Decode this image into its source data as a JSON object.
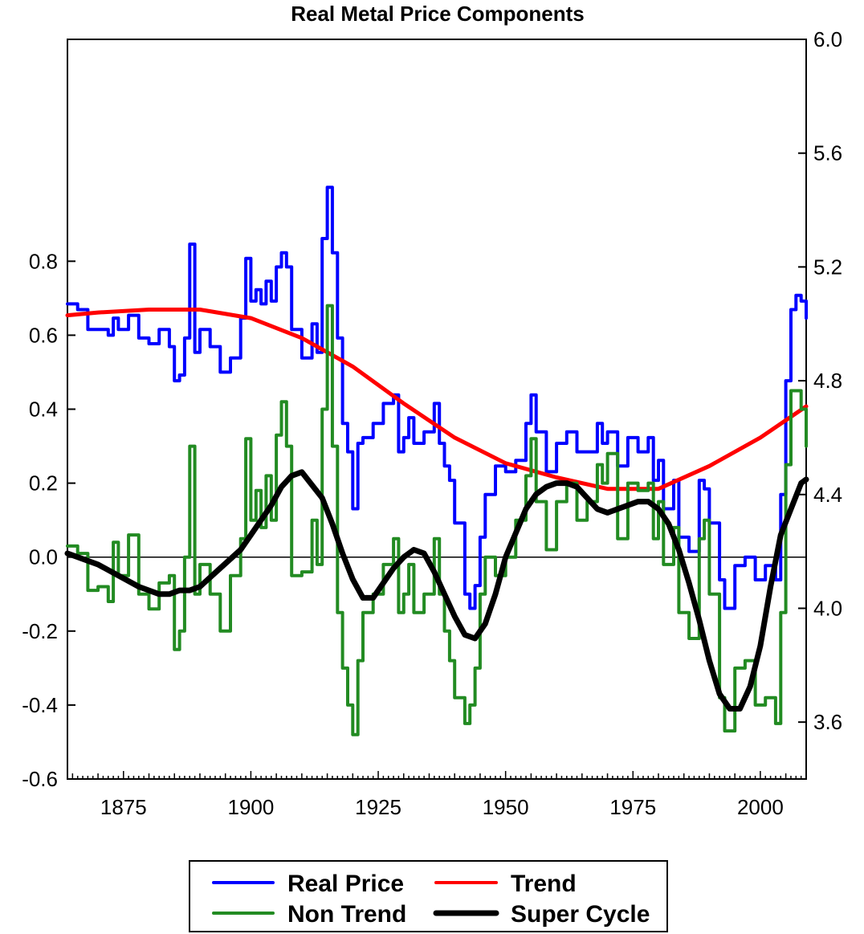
{
  "chart_data": {
    "type": "line",
    "title": "Real Metal Price Components",
    "legend_position": "bottom-center",
    "grid": false,
    "x_axis": {
      "range": [
        1864,
        2009
      ],
      "ticks": [
        1875,
        1900,
        1925,
        1950,
        1975,
        2000
      ]
    },
    "y_left": {
      "range": [
        -0.6,
        1.4
      ],
      "ticks": [
        "-0.6",
        "-0.4",
        "-0.2",
        "0.0",
        "0.2",
        "0.4",
        "0.6",
        "0.8"
      ],
      "reference_line": 0.0
    },
    "y_right": {
      "range": [
        3.4,
        6.0
      ],
      "ticks": [
        "3.6",
        "4.0",
        "4.4",
        "4.8",
        "5.2",
        "5.6",
        "6.0"
      ]
    },
    "series": [
      {
        "name": "Real Price",
        "axis": "right",
        "color": "#0000ff",
        "width": 4,
        "x": [
          1864,
          1866,
          1868,
          1870,
          1872,
          1873,
          1874,
          1876,
          1878,
          1880,
          1882,
          1884,
          1885,
          1886,
          1887,
          1888,
          1889,
          1890,
          1892,
          1894,
          1896,
          1898,
          1899,
          1900,
          1901,
          1902,
          1903,
          1904,
          1905,
          1906,
          1907,
          1908,
          1910,
          1912,
          1913,
          1914,
          1915,
          1916,
          1917,
          1918,
          1919,
          1920,
          1921,
          1922,
          1924,
          1926,
          1928,
          1929,
          1930,
          1931,
          1932,
          1934,
          1936,
          1937,
          1938,
          1939,
          1940,
          1942,
          1943,
          1944,
          1945,
          1946,
          1948,
          1950,
          1952,
          1954,
          1955,
          1956,
          1958,
          1960,
          1962,
          1964,
          1966,
          1968,
          1969,
          1970,
          1972,
          1974,
          1976,
          1978,
          1979,
          1980,
          1981,
          1983,
          1984,
          1986,
          1988,
          1989,
          1990,
          1992,
          1993,
          1995,
          1997,
          1999,
          2001,
          2003,
          2004,
          2005,
          2006,
          2007,
          2008,
          2009
        ],
        "y": [
          5.07,
          5.05,
          4.98,
          4.98,
          4.96,
          5.02,
          4.98,
          5.03,
          4.95,
          4.93,
          4.98,
          4.92,
          4.8,
          4.82,
          4.95,
          5.28,
          4.9,
          4.98,
          4.92,
          4.83,
          4.88,
          5.02,
          5.23,
          5.08,
          5.12,
          5.07,
          5.15,
          5.08,
          5.2,
          5.25,
          5.2,
          4.98,
          4.88,
          5.0,
          4.9,
          5.3,
          5.48,
          5.25,
          4.95,
          4.65,
          4.55,
          4.35,
          4.58,
          4.6,
          4.65,
          4.72,
          4.75,
          4.55,
          4.6,
          4.67,
          4.58,
          4.62,
          4.72,
          4.58,
          4.5,
          4.45,
          4.3,
          4.05,
          4.0,
          4.08,
          4.25,
          4.4,
          4.5,
          4.48,
          4.52,
          4.65,
          4.75,
          4.62,
          4.48,
          4.58,
          4.62,
          4.55,
          4.55,
          4.65,
          4.58,
          4.62,
          4.5,
          4.6,
          4.55,
          4.6,
          4.45,
          4.52,
          4.35,
          4.45,
          4.25,
          4.2,
          4.45,
          4.42,
          4.3,
          4.1,
          4.0,
          4.15,
          4.18,
          4.1,
          4.15,
          4.1,
          4.4,
          4.8,
          5.05,
          5.1,
          5.08,
          5.02
        ]
      },
      {
        "name": "Trend",
        "axis": "right",
        "color": "#ff0000",
        "width": 5,
        "x": [
          1864,
          1870,
          1880,
          1890,
          1900,
          1910,
          1920,
          1930,
          1940,
          1950,
          1960,
          1970,
          1980,
          1990,
          2000,
          2009
        ],
        "y": [
          5.03,
          5.04,
          5.05,
          5.05,
          5.02,
          4.95,
          4.85,
          4.72,
          4.6,
          4.51,
          4.46,
          4.42,
          4.42,
          4.5,
          4.6,
          4.71
        ]
      },
      {
        "name": "Non Trend",
        "axis": "left",
        "color": "#228b22",
        "width": 4,
        "x": [
          1864,
          1866,
          1868,
          1870,
          1872,
          1873,
          1874,
          1876,
          1878,
          1880,
          1882,
          1884,
          1885,
          1886,
          1887,
          1888,
          1889,
          1890,
          1892,
          1894,
          1896,
          1898,
          1899,
          1900,
          1901,
          1902,
          1903,
          1904,
          1905,
          1906,
          1907,
          1908,
          1910,
          1912,
          1913,
          1914,
          1915,
          1916,
          1917,
          1918,
          1919,
          1920,
          1921,
          1922,
          1924,
          1926,
          1928,
          1929,
          1930,
          1931,
          1932,
          1934,
          1936,
          1937,
          1938,
          1939,
          1940,
          1942,
          1943,
          1944,
          1945,
          1946,
          1948,
          1950,
          1952,
          1954,
          1955,
          1956,
          1958,
          1960,
          1962,
          1964,
          1966,
          1968,
          1969,
          1970,
          1972,
          1974,
          1976,
          1978,
          1979,
          1980,
          1981,
          1983,
          1984,
          1986,
          1988,
          1989,
          1990,
          1992,
          1993,
          1995,
          1997,
          1999,
          2001,
          2003,
          2004,
          2005,
          2006,
          2007,
          2008,
          2009
        ],
        "y": [
          0.03,
          0.01,
          -0.09,
          -0.08,
          -0.12,
          0.04,
          -0.05,
          0.06,
          -0.1,
          -0.14,
          -0.07,
          -0.05,
          -0.25,
          -0.2,
          0.0,
          0.3,
          -0.1,
          -0.02,
          -0.1,
          -0.2,
          -0.05,
          0.05,
          0.32,
          0.1,
          0.18,
          0.08,
          0.22,
          0.1,
          0.33,
          0.42,
          0.3,
          -0.05,
          -0.04,
          0.1,
          -0.02,
          0.4,
          0.68,
          0.3,
          -0.15,
          -0.3,
          -0.4,
          -0.48,
          -0.28,
          -0.15,
          -0.1,
          -0.02,
          0.05,
          -0.15,
          -0.1,
          -0.02,
          -0.15,
          -0.1,
          0.05,
          -0.1,
          -0.2,
          -0.28,
          -0.38,
          -0.45,
          -0.4,
          -0.3,
          -0.1,
          0.0,
          -0.05,
          0.0,
          0.1,
          0.22,
          0.32,
          0.15,
          0.02,
          0.15,
          0.2,
          0.1,
          0.15,
          0.25,
          0.2,
          0.28,
          0.05,
          0.2,
          0.18,
          0.2,
          0.05,
          0.15,
          -0.02,
          0.08,
          -0.15,
          -0.22,
          0.05,
          0.1,
          -0.1,
          -0.38,
          -0.47,
          -0.3,
          -0.28,
          -0.4,
          -0.38,
          -0.45,
          -0.15,
          0.25,
          0.45,
          0.45,
          0.4,
          0.3
        ]
      },
      {
        "name": "Super Cycle",
        "axis": "left",
        "color": "#000000",
        "width": 7,
        "x": [
          1864,
          1866,
          1870,
          1874,
          1878,
          1882,
          1884,
          1886,
          1888,
          1890,
          1894,
          1898,
          1900,
          1904,
          1906,
          1908,
          1910,
          1914,
          1916,
          1918,
          1920,
          1922,
          1924,
          1926,
          1928,
          1930,
          1932,
          1934,
          1936,
          1938,
          1940,
          1942,
          1944,
          1946,
          1948,
          1950,
          1954,
          1956,
          1958,
          1960,
          1962,
          1964,
          1966,
          1968,
          1970,
          1972,
          1974,
          1976,
          1978,
          1980,
          1982,
          1984,
          1986,
          1988,
          1990,
          1992,
          1994,
          1996,
          1998,
          2000,
          2002,
          2004,
          2006,
          2008,
          2009
        ],
        "y": [
          0.01,
          0.0,
          -0.02,
          -0.05,
          -0.08,
          -0.1,
          -0.1,
          -0.09,
          -0.09,
          -0.08,
          -0.03,
          0.02,
          0.06,
          0.14,
          0.19,
          0.22,
          0.23,
          0.16,
          0.09,
          0.01,
          -0.06,
          -0.11,
          -0.11,
          -0.07,
          -0.03,
          0.0,
          0.02,
          0.01,
          -0.04,
          -0.1,
          -0.16,
          -0.21,
          -0.22,
          -0.18,
          -0.1,
          0.0,
          0.13,
          0.17,
          0.19,
          0.2,
          0.2,
          0.19,
          0.16,
          0.13,
          0.12,
          0.13,
          0.14,
          0.15,
          0.15,
          0.13,
          0.09,
          0.02,
          -0.07,
          -0.17,
          -0.28,
          -0.37,
          -0.41,
          -0.41,
          -0.35,
          -0.24,
          -0.08,
          0.06,
          0.13,
          0.2,
          0.21
        ]
      }
    ],
    "legend": {
      "rows": [
        [
          {
            "label": "Real Price",
            "color": "#0000ff",
            "width": 4
          },
          {
            "label": "Trend",
            "color": "#ff0000",
            "width": 4
          }
        ],
        [
          {
            "label": "Non Trend",
            "color": "#228b22",
            "width": 4
          },
          {
            "label": "Super Cycle",
            "color": "#000000",
            "width": 7
          }
        ]
      ]
    }
  }
}
